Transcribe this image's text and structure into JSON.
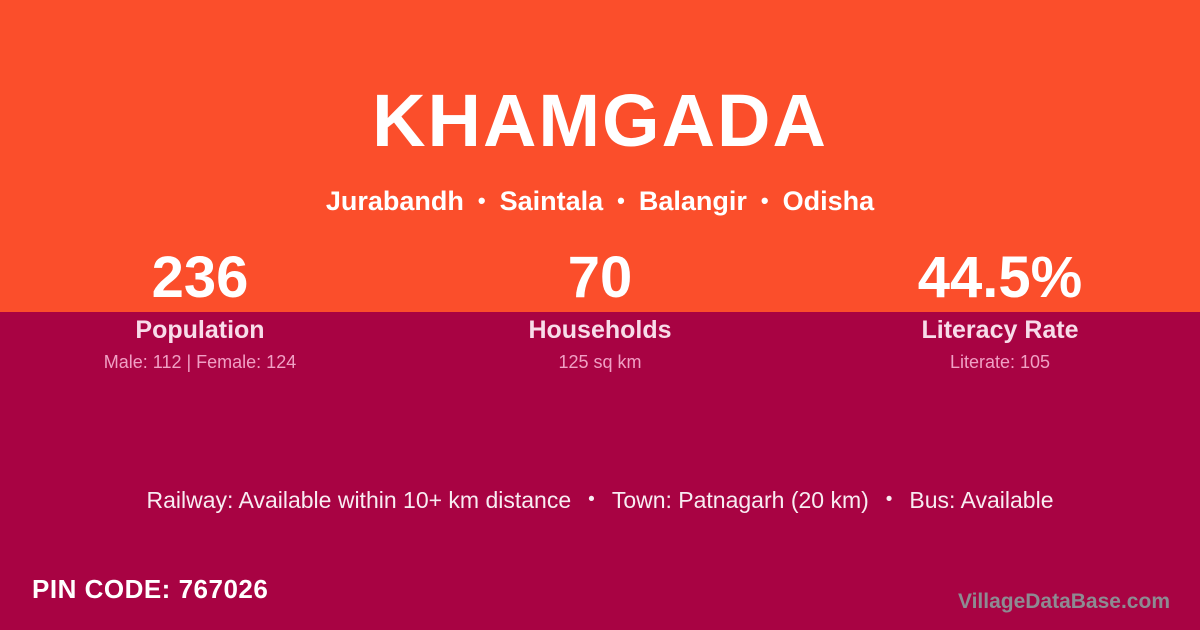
{
  "header": {
    "title": "KHAMGADA",
    "breadcrumb": {
      "items": [
        "Jurabandh",
        "Saintala",
        "Balangir",
        "Odisha"
      ],
      "separator": "•"
    }
  },
  "stats": [
    {
      "value": "236",
      "label": "Population",
      "detail": "Male: 112 | Female: 124"
    },
    {
      "value": "70",
      "label": "Households",
      "detail": "125 sq km"
    },
    {
      "value": "44.5%",
      "label": "Literacy Rate",
      "detail": "Literate: 105"
    }
  ],
  "facilities": {
    "items": [
      "Railway: Available within 10+ km distance",
      "Town: Patnagarh (20 km)",
      "Bus: Available"
    ],
    "separator": "•"
  },
  "footer": {
    "pin_code": "PIN CODE: 767026",
    "watermark": "VillageDataBase.com"
  },
  "colors": {
    "band_top": "#FB4E2B",
    "band_bottom": "#A80343",
    "title_text": "#FFFFFF",
    "label_text": "#F8DCE9",
    "detail_text": "#F0A0C4",
    "facilities_text": "#F8ECF2",
    "watermark_text": "#8D8B92"
  }
}
